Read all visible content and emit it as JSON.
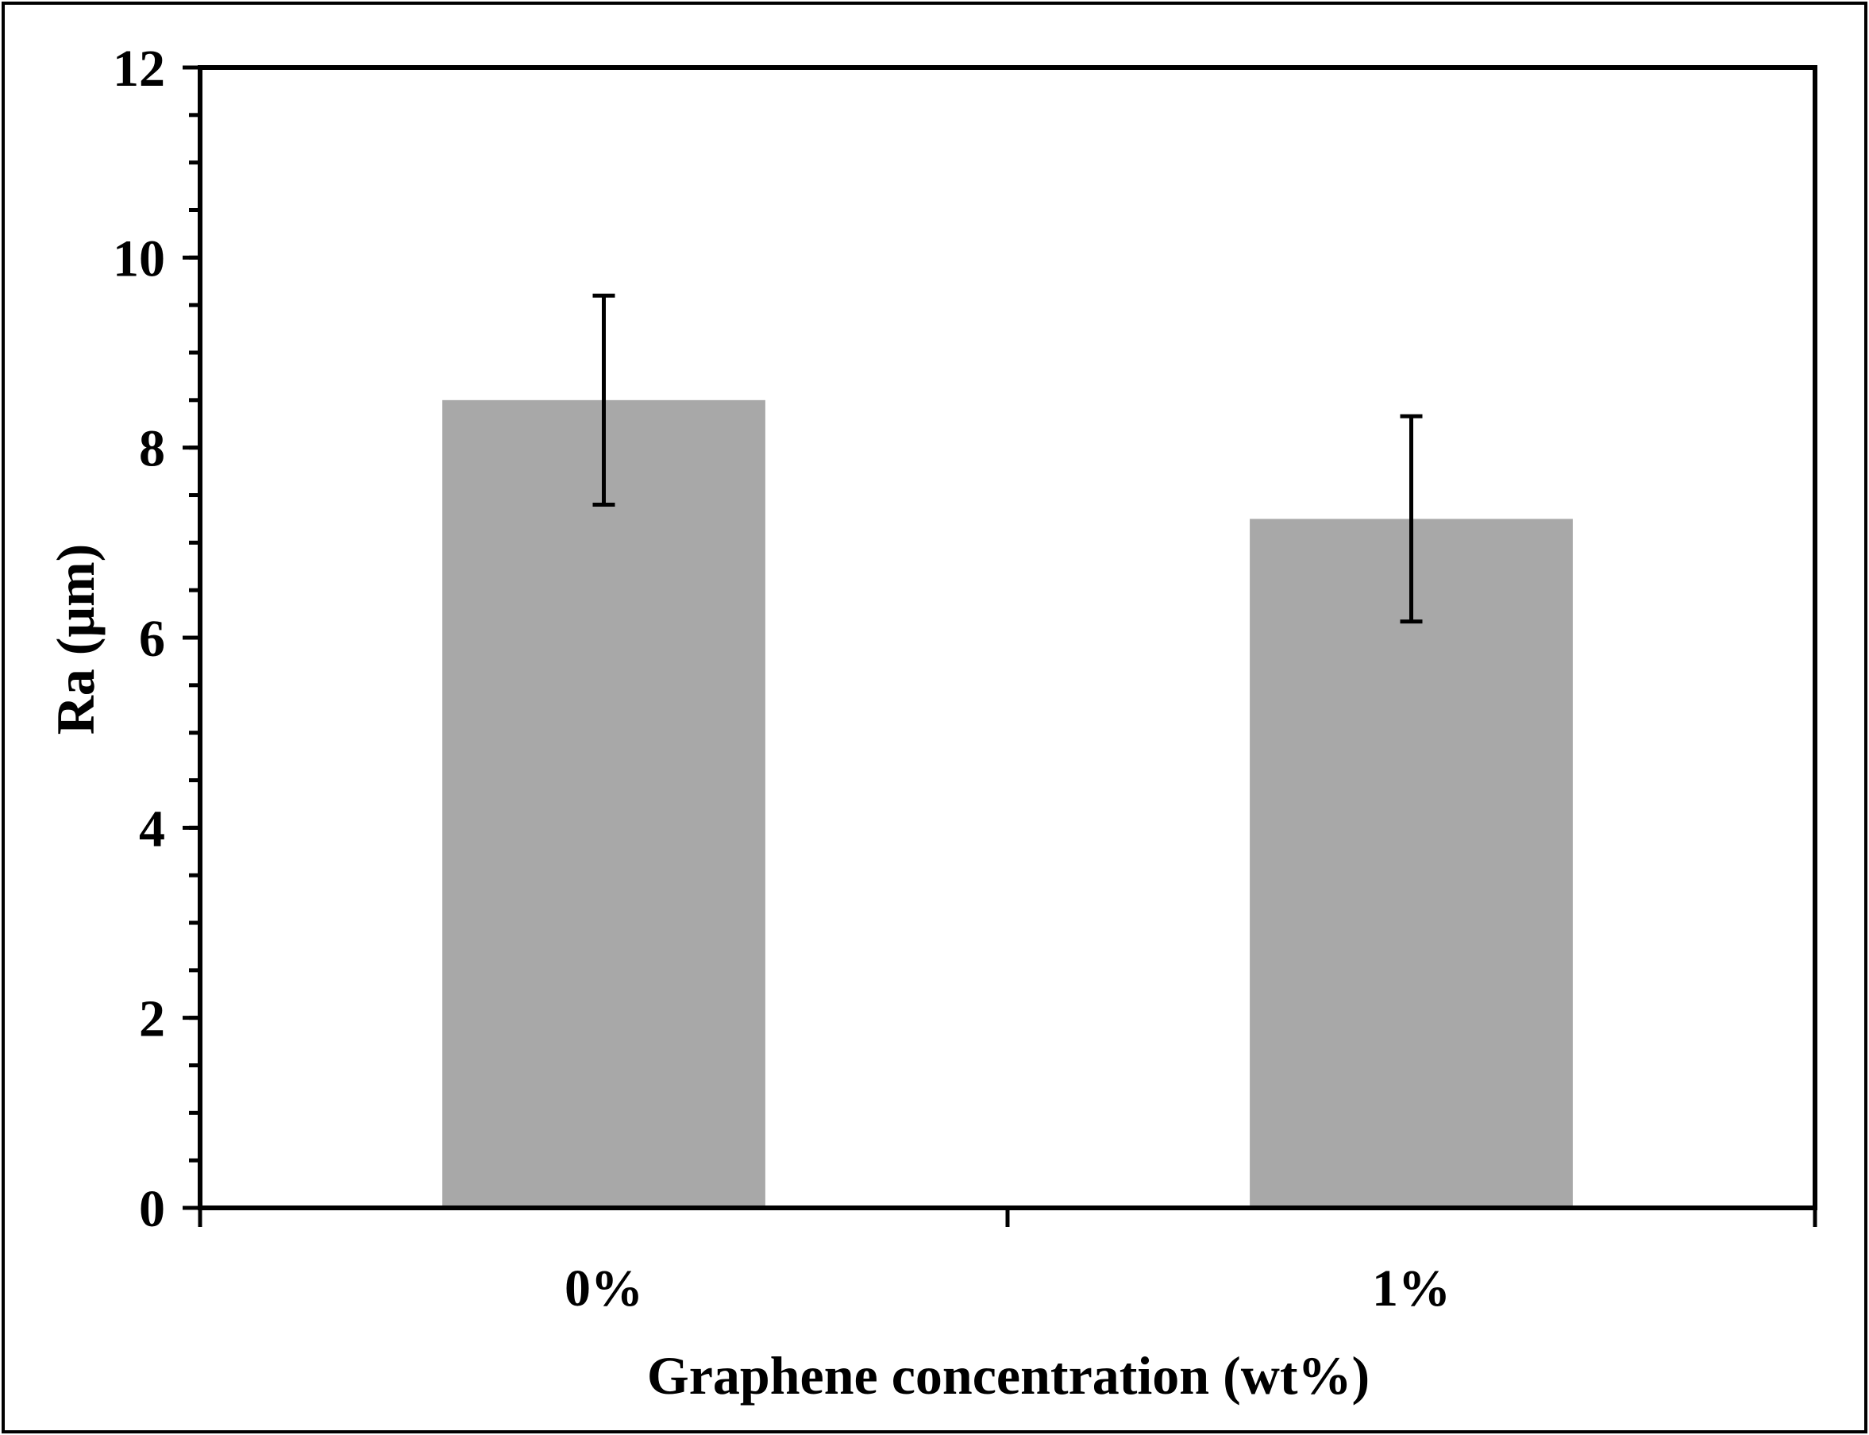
{
  "chart_data": {
    "type": "bar",
    "title": "",
    "xlabel": "Graphene concentration (wt%)",
    "ylabel": "Ra (μm)",
    "categories": [
      "0%",
      "1%"
    ],
    "values": [
      8.5,
      7.25
    ],
    "error": [
      1.1,
      1.08
    ],
    "ylim": [
      0,
      12
    ],
    "yticks": [
      "0",
      "2",
      "4",
      "6",
      "8",
      "10",
      "12"
    ],
    "y_major_step": 2,
    "y_minor_step": 0.5,
    "bar_color": "#a8a8a8",
    "grid": false,
    "legend": "none"
  }
}
